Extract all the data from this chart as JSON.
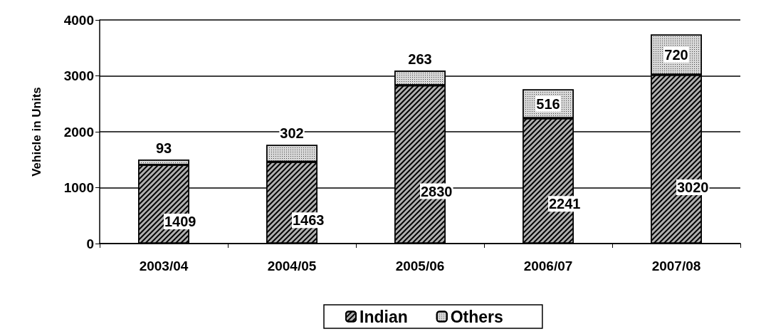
{
  "chart_data": {
    "type": "bar",
    "stacked": true,
    "ylabel": "Vehicle in Units",
    "categories": [
      "2003/04",
      "2004/05",
      "2005/06",
      "2006/07",
      "2007/08"
    ],
    "series": [
      {
        "name": "Indian",
        "color": "#b0b0b0",
        "values": [
          1409,
          1463,
          2830,
          2241,
          3020
        ]
      },
      {
        "name": "Others",
        "color": "#d8d8d8",
        "values": [
          93,
          302,
          263,
          516,
          720
        ]
      }
    ],
    "ylim": [
      0,
      4000
    ],
    "yticks": [
      0,
      1000,
      2000,
      3000,
      4000
    ],
    "grid": "y",
    "legend": "bottom",
    "data_labels": true
  }
}
